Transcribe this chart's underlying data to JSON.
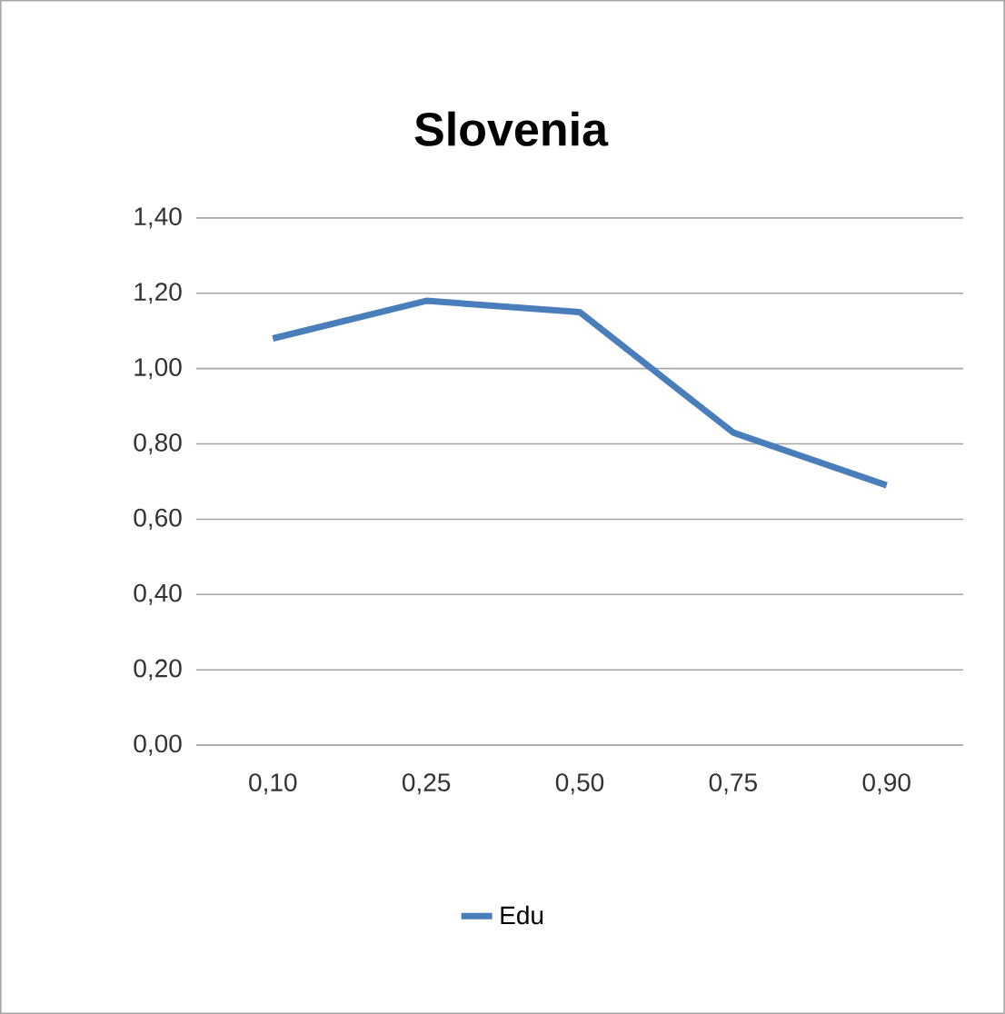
{
  "chart_data": {
    "type": "line",
    "title": "Slovenia",
    "categories": [
      "0,10",
      "0,25",
      "0,50",
      "0,75",
      "0,90"
    ],
    "series": [
      {
        "name": "Edu",
        "color": "#4a7ebb",
        "values": [
          1.08,
          1.18,
          1.15,
          0.83,
          0.69
        ]
      }
    ],
    "ylim": [
      0,
      1.4
    ],
    "yticks": [
      {
        "value": 0,
        "label": "0,00"
      },
      {
        "value": 0.2,
        "label": "0,20"
      },
      {
        "value": 0.4,
        "label": "0,40"
      },
      {
        "value": 0.6,
        "label": "0,60"
      },
      {
        "value": 0.8,
        "label": "0,80"
      },
      {
        "value": 1.0,
        "label": "1,00"
      },
      {
        "value": 1.2,
        "label": "1,20"
      },
      {
        "value": 1.4,
        "label": "1,40"
      }
    ],
    "grid": "y",
    "legend": "bottom",
    "marker": "none",
    "line_style": "solid"
  }
}
